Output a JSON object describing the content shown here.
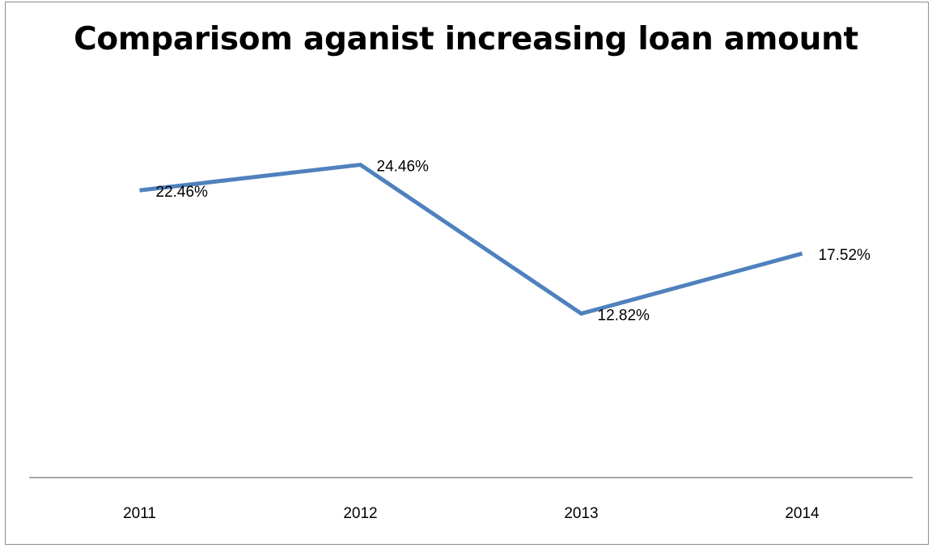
{
  "chart_data": {
    "type": "line",
    "title": "Comparisom aganist increasing loan amount",
    "categories": [
      "2011",
      "2012",
      "2013",
      "2014"
    ],
    "series": [
      {
        "values": [
          22.46,
          24.46,
          12.82,
          17.52
        ],
        "labels": [
          "22.46%",
          "24.46%",
          "12.82%",
          "17.52%"
        ],
        "color": "#4f81bd"
      }
    ],
    "ylim": [
      0,
      40
    ],
    "y_axis_visible": false,
    "grid": false,
    "legend": "none",
    "xlabel": "",
    "ylabel": ""
  }
}
